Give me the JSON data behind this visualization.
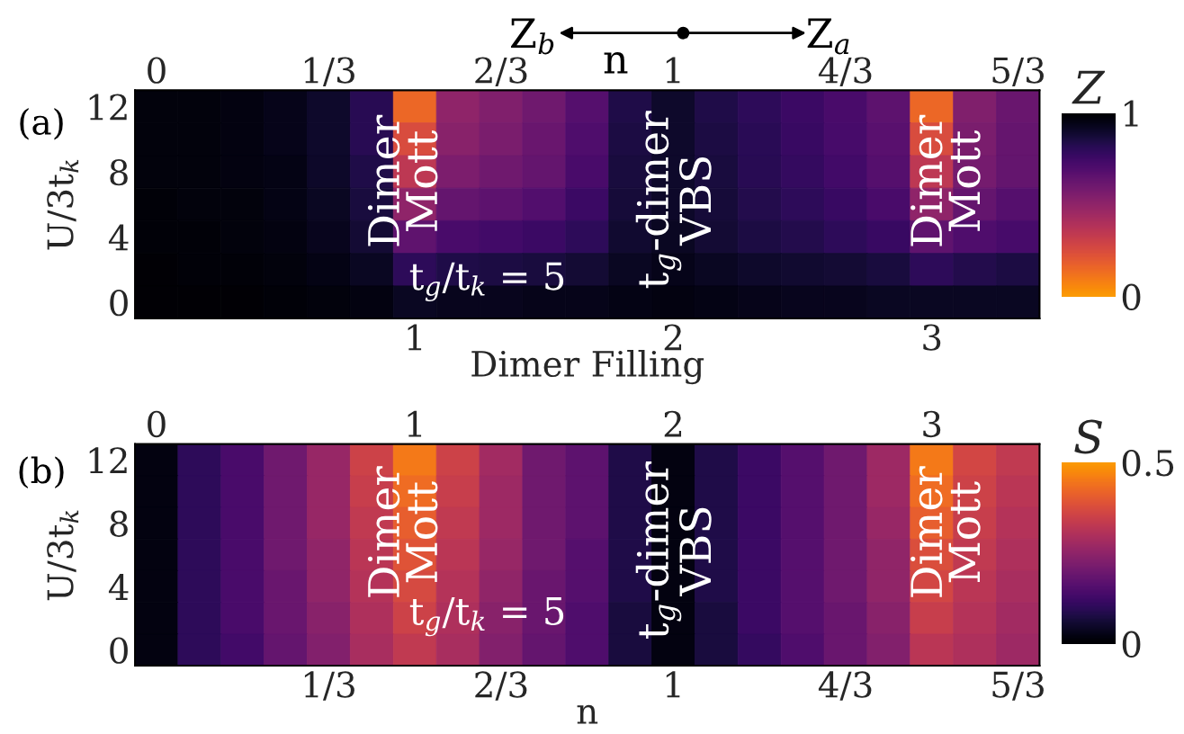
{
  "chart_data": [
    {
      "type": "heatmap",
      "xlabel": "Dimer Filling",
      "ylabel": "U/3t$_{k}$",
      "clabel": "Z",
      "annotations": [
        "(a)",
        "Z$_{b}$",
        "n",
        "Z$_{a}$",
        "Dimer\nMott",
        "t$_{g}$-dimer\nVBS",
        "Dimer\nMott",
        "t$_{g}$/t$_{k}$ = 5"
      ],
      "categories": [
        null,
        null,
        null,
        null,
        null,
        null,
        "1",
        null,
        null,
        null,
        null,
        null,
        "2",
        null,
        null,
        null,
        null,
        null,
        "3",
        null,
        null
      ],
      "y_categories": [
        "12",
        null,
        "8",
        null,
        "4",
        null,
        "0"
      ],
      "cells": [
        [
          0.97,
          0.97,
          0.96,
          0.94,
          0.9,
          0.82,
          0.15,
          0.5,
          0.55,
          0.6,
          0.68,
          0.84,
          0.9,
          0.84,
          0.8,
          0.76,
          0.72,
          0.66,
          0.15,
          0.55,
          0.62
        ],
        [
          0.97,
          0.97,
          0.96,
          0.94,
          0.9,
          0.82,
          0.25,
          0.52,
          0.57,
          0.62,
          0.7,
          0.85,
          0.9,
          0.85,
          0.81,
          0.77,
          0.73,
          0.67,
          0.25,
          0.57,
          0.63
        ],
        [
          0.97,
          0.97,
          0.96,
          0.95,
          0.91,
          0.84,
          0.35,
          0.56,
          0.6,
          0.64,
          0.72,
          0.86,
          0.9,
          0.86,
          0.82,
          0.78,
          0.74,
          0.68,
          0.35,
          0.58,
          0.64
        ],
        [
          0.98,
          0.97,
          0.97,
          0.95,
          0.92,
          0.86,
          0.5,
          0.64,
          0.66,
          0.69,
          0.76,
          0.87,
          0.91,
          0.87,
          0.83,
          0.8,
          0.77,
          0.72,
          0.5,
          0.64,
          0.68
        ],
        [
          0.98,
          0.98,
          0.97,
          0.96,
          0.93,
          0.88,
          0.65,
          0.72,
          0.74,
          0.76,
          0.8,
          0.89,
          0.92,
          0.88,
          0.85,
          0.83,
          0.8,
          0.77,
          0.65,
          0.7,
          0.73
        ],
        [
          0.99,
          0.98,
          0.98,
          0.97,
          0.95,
          0.92,
          0.8,
          0.84,
          0.85,
          0.86,
          0.88,
          0.92,
          0.94,
          0.92,
          0.9,
          0.89,
          0.88,
          0.86,
          0.8,
          0.83,
          0.85
        ],
        [
          0.99,
          0.99,
          0.99,
          0.98,
          0.97,
          0.96,
          0.92,
          0.93,
          0.93,
          0.94,
          0.94,
          0.95,
          0.96,
          0.95,
          0.94,
          0.93,
          0.93,
          0.92,
          0.92,
          0.92,
          0.92
        ]
      ],
      "x2lim": [
        -0.0417,
        1.7083
      ],
      "x2ticks": [
        0,
        {
          "value": 0.3333,
          "label": "1/3"
        },
        {
          "value": 0.6667,
          "label": "2/3"
        },
        1,
        {
          "value": 1.3333,
          "label": "4/3"
        },
        {
          "value": 1.6667,
          "label": "5/3"
        }
      ],
      "clim": [
        0,
        1
      ],
      "cticks": [
        0,
        1
      ]
    },
    {
      "type": "heatmap",
      "xlabel": "n",
      "ylabel": "U/3t$_{k}$",
      "clabel": "S",
      "annotations": [
        "(b)",
        "Dimer\nMott",
        "t$_{g}$-dimer\nVBS",
        "Dimer\nMott",
        "t$_{g}$/t$_{k}$ = 5"
      ],
      "categories": [
        null,
        null,
        null,
        null,
        "1/3",
        null,
        null,
        null,
        "2/3",
        null,
        null,
        null,
        "1",
        null,
        null,
        null,
        "4/3",
        null,
        null,
        null,
        "5/3"
      ],
      "y_categories": [
        "12",
        null,
        "8",
        null,
        "4",
        null,
        "0"
      ],
      "cells": [
        [
          0.02,
          0.1,
          0.14,
          0.2,
          0.26,
          0.35,
          0.45,
          0.35,
          0.28,
          0.2,
          0.17,
          0.08,
          0.02,
          0.08,
          0.12,
          0.16,
          0.2,
          0.27,
          0.45,
          0.36,
          0.33
        ],
        [
          0.02,
          0.1,
          0.14,
          0.2,
          0.26,
          0.34,
          0.43,
          0.34,
          0.27,
          0.2,
          0.17,
          0.08,
          0.02,
          0.08,
          0.12,
          0.16,
          0.2,
          0.27,
          0.43,
          0.35,
          0.32
        ],
        [
          0.02,
          0.1,
          0.14,
          0.2,
          0.26,
          0.33,
          0.41,
          0.33,
          0.27,
          0.2,
          0.17,
          0.08,
          0.02,
          0.08,
          0.12,
          0.16,
          0.2,
          0.26,
          0.41,
          0.34,
          0.31
        ],
        [
          0.02,
          0.1,
          0.14,
          0.2,
          0.25,
          0.32,
          0.39,
          0.32,
          0.26,
          0.2,
          0.16,
          0.08,
          0.02,
          0.08,
          0.12,
          0.16,
          0.2,
          0.25,
          0.38,
          0.33,
          0.3
        ],
        [
          0.02,
          0.1,
          0.14,
          0.19,
          0.25,
          0.31,
          0.37,
          0.31,
          0.25,
          0.19,
          0.16,
          0.08,
          0.02,
          0.08,
          0.12,
          0.16,
          0.2,
          0.25,
          0.36,
          0.32,
          0.29
        ],
        [
          0.02,
          0.1,
          0.14,
          0.19,
          0.24,
          0.3,
          0.35,
          0.3,
          0.24,
          0.19,
          0.15,
          0.07,
          0.02,
          0.07,
          0.12,
          0.16,
          0.19,
          0.24,
          0.34,
          0.31,
          0.28
        ],
        [
          0.02,
          0.1,
          0.13,
          0.18,
          0.23,
          0.29,
          0.33,
          0.29,
          0.23,
          0.18,
          0.15,
          0.07,
          0.02,
          0.07,
          0.11,
          0.15,
          0.19,
          0.23,
          0.32,
          0.3,
          0.27
        ]
      ],
      "x2lim": [
        -0.0833,
        3.4167
      ],
      "x2ticks": [
        0,
        1,
        2,
        3
      ],
      "clim": [
        0,
        0.5
      ],
      "cticks": [
        0,
        0.5
      ]
    }
  ]
}
